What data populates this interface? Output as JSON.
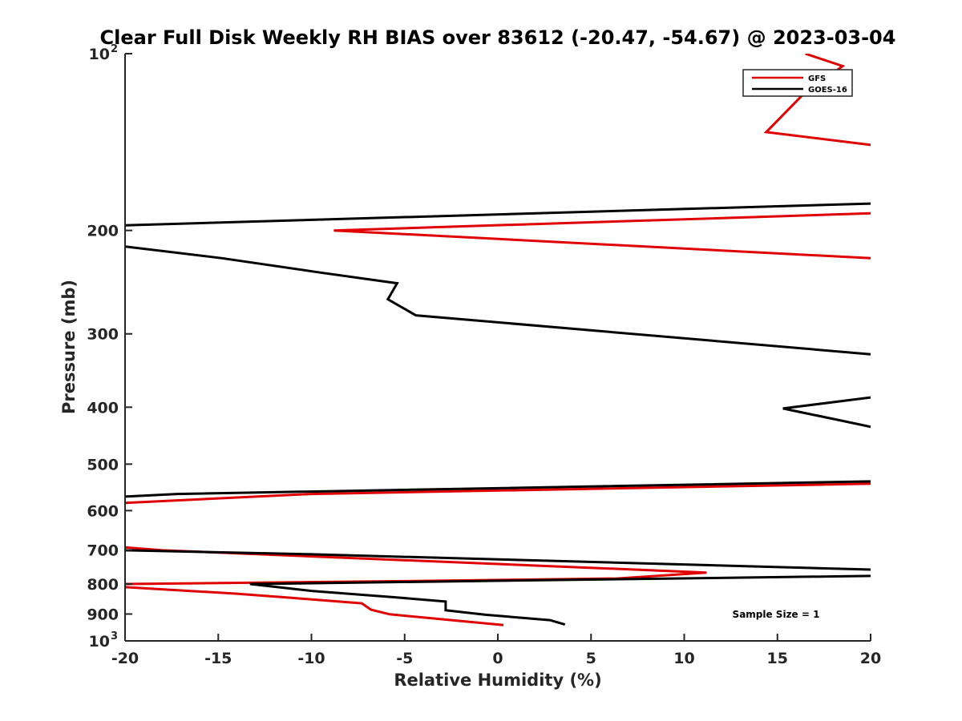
{
  "chart_data": {
    "type": "line",
    "title": "Clear Full Disk Weekly RH BIAS over 83612 (-20.47, -54.67) @ 2023-03-04",
    "xlabel": "Relative Humidity (%)",
    "ylabel": "Pressure (mb)",
    "xlim": [
      -20,
      20
    ],
    "ylim": [
      100,
      1000
    ],
    "yscale": "log",
    "y_reversed": true,
    "grid": false,
    "legend_position": "top-right",
    "x_ticks": [
      {
        "value": -20,
        "label": "-20"
      },
      {
        "value": -15,
        "label": "-15"
      },
      {
        "value": -10,
        "label": "-10"
      },
      {
        "value": -5,
        "label": "-5"
      },
      {
        "value": 0,
        "label": "0"
      },
      {
        "value": 5,
        "label": "5"
      },
      {
        "value": 10,
        "label": "10"
      },
      {
        "value": 15,
        "label": "15"
      },
      {
        "value": 20,
        "label": "20"
      }
    ],
    "y_ticks": [
      {
        "value": 100,
        "base": "10",
        "exp": "2"
      },
      {
        "value": 200,
        "base": "200"
      },
      {
        "value": 300,
        "base": "300"
      },
      {
        "value": 400,
        "base": "400"
      },
      {
        "value": 500,
        "base": "500"
      },
      {
        "value": 600,
        "base": "600"
      },
      {
        "value": 700,
        "base": "700"
      },
      {
        "value": 800,
        "base": "800"
      },
      {
        "value": 900,
        "base": "900"
      },
      {
        "value": 1000,
        "base": "10",
        "exp": "3"
      }
    ],
    "series": [
      {
        "name": "GFS",
        "color": "#e00000",
        "segments": [
          [
            [
              16.5,
              100
            ],
            [
              18.5,
              105
            ],
            [
              16.3,
              118
            ],
            [
              14.4,
              136
            ],
            [
              20.0,
              143
            ]
          ],
          [
            [
              20.0,
              187
            ],
            [
              -8.8,
              200
            ],
            [
              20.0,
              223
            ]
          ],
          [
            [
              20.0,
              540
            ],
            [
              -10.0,
              562
            ],
            [
              -20.0,
              582
            ]
          ],
          [
            [
              -20.0,
              693
            ],
            [
              -18.0,
              701
            ],
            [
              11.2,
              765
            ],
            [
              6.4,
              783
            ],
            [
              -5.0,
              791
            ],
            [
              -20.0,
              800
            ]
          ],
          [
            [
              -20.0,
              810
            ],
            [
              -14.0,
              831
            ],
            [
              -11.0,
              845
            ],
            [
              -7.3,
              863
            ],
            [
              -6.8,
              885
            ],
            [
              -5.8,
              901
            ],
            [
              0.3,
              940
            ]
          ]
        ]
      },
      {
        "name": "GOES-16",
        "color": "#000000",
        "segments": [
          [
            [
              20.0,
              180
            ],
            [
              -20.0,
              196
            ]
          ],
          [
            [
              -20.0,
              213
            ],
            [
              -14.8,
              223
            ],
            [
              -9.5,
              236
            ],
            [
              -5.4,
              246
            ],
            [
              -5.9,
              262
            ],
            [
              -4.4,
              279
            ],
            [
              20.0,
              325
            ]
          ],
          [
            [
              20.0,
              385
            ],
            [
              15.3,
              402
            ],
            [
              18.5,
              422
            ],
            [
              20.0,
              432
            ]
          ],
          [
            [
              20.0,
              535
            ],
            [
              -17.2,
              562
            ],
            [
              -20.0,
              568
            ]
          ],
          [
            [
              -20.0,
              701
            ],
            [
              -10.0,
              712
            ],
            [
              20.0,
              756
            ]
          ],
          [
            [
              20.0,
              775
            ],
            [
              -13.3,
              800
            ],
            [
              -10.0,
              822
            ],
            [
              -5.5,
              843
            ],
            [
              -2.8,
              857
            ],
            [
              -2.8,
              887
            ],
            [
              -0.6,
              903
            ],
            [
              2.8,
              922
            ],
            [
              3.6,
              938
            ]
          ]
        ]
      }
    ],
    "annotations": [
      {
        "text": "Sample Size = 1",
        "x": 17,
        "y": 900
      }
    ]
  }
}
